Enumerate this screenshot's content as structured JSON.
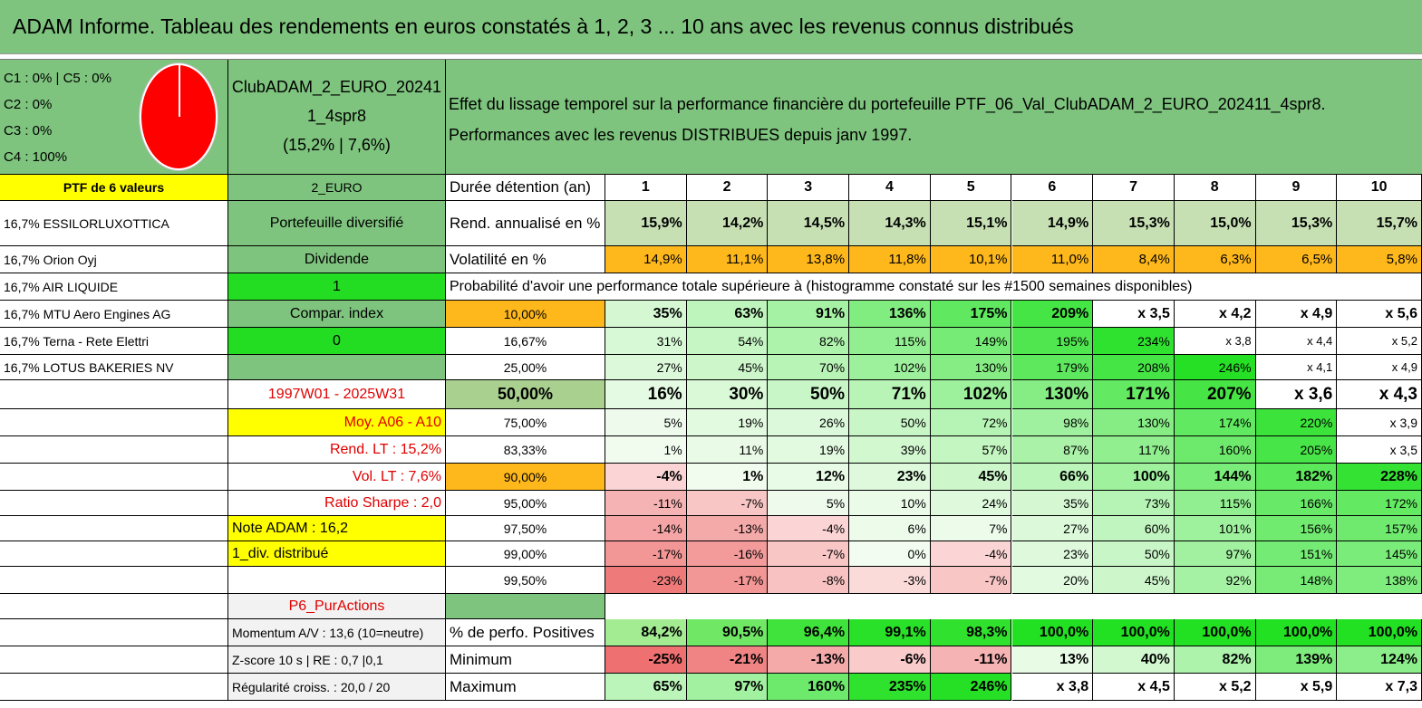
{
  "header": {
    "title": "ADAM Informe. Tableau des rendements en euros constatés à 1, 2, 3 ... 10 ans avec les revenus connus distribués"
  },
  "allocation": [
    "C1 : 0% | C5 : 0%",
    "C2 : 0%",
    "C3 : 0%",
    "C4 : 100%"
  ],
  "portfolio": [
    "ClubADAM_2_EURO_20241",
    "1_4spr8",
    "(15,2% | 7,6%)"
  ],
  "description": [
    "Effet du lissage temporel sur la performance financière du portefeuille PTF_06_Val_ClubADAM_2_EURO_202411_4spr8.",
    "Performances avec les revenus DISTRIBUES depuis janv 1997."
  ],
  "table": {
    "rows": [
      [
        "PTF de 6 valeurs",
        "2_EURO",
        "Durée détention (an)",
        "1",
        "2",
        "3",
        "4",
        "5",
        "6",
        "7",
        "8",
        "9",
        "10"
      ],
      [
        "16,7% ESSILORLUXOTTICA",
        "Portefeuille diversifié",
        "Rend. annualisé en %",
        "15,9%",
        "14,2%",
        "14,5%",
        "14,3%",
        "15,1%",
        "14,9%",
        "15,3%",
        "15,0%",
        "15,3%",
        "15,7%"
      ],
      [
        "16,7% Orion Oyj",
        "Dividende",
        "Volatilité en %",
        "14,9%",
        "11,1%",
        "13,8%",
        "11,8%",
        "10,1%",
        "11,0%",
        "8,4%",
        "6,3%",
        "6,5%",
        "5,8%"
      ],
      [
        "16,7% AIR LIQUIDE",
        "1",
        "Probabilité d'avoir une performance totale supérieure à (histogramme constaté sur les #1500 semaines disponibles)"
      ],
      [
        "16,7% MTU Aero Engines AG",
        "Compar. index",
        "10,00%",
        "35%",
        "63%",
        "91%",
        "136%",
        "175%",
        "209%",
        "x 3,5",
        "x 4,2",
        "x 4,9",
        "x 5,6"
      ],
      [
        "16,7% Terna - Rete Elettri",
        "0",
        "16,67%",
        "31%",
        "54%",
        "82%",
        "115%",
        "149%",
        "195%",
        "234%",
        "x 3,8",
        "x 4,4",
        "x 5,2"
      ],
      [
        "16,7% LOTUS BAKERIES NV",
        null,
        "25,00%",
        "27%",
        "45%",
        "70%",
        "102%",
        "130%",
        "179%",
        "208%",
        "246%",
        "x 4,1",
        "x 4,9"
      ],
      [
        null,
        "1997W01 - 2025W31",
        "50,00%",
        "16%",
        "30%",
        "50%",
        "71%",
        "102%",
        "130%",
        "171%",
        "207%",
        "x 3,6",
        "x 4,3"
      ],
      [
        null,
        "Moy. A06 - A10",
        "75,00%",
        "5%",
        "19%",
        "26%",
        "50%",
        "72%",
        "98%",
        "130%",
        "174%",
        "220%",
        "x 3,9"
      ],
      [
        null,
        "Rend. LT : 15,2%",
        "83,33%",
        "1%",
        "11%",
        "19%",
        "39%",
        "57%",
        "87%",
        "117%",
        "160%",
        "205%",
        "x 3,5"
      ],
      [
        null,
        "Vol. LT : 7,6%",
        "90,00%",
        "-4%",
        "1%",
        "12%",
        "23%",
        "45%",
        "66%",
        "100%",
        "144%",
        "182%",
        "228%"
      ],
      [
        null,
        "Ratio Sharpe : 2,0",
        "95,00%",
        "-11%",
        "-7%",
        "5%",
        "10%",
        "24%",
        "35%",
        "73%",
        "115%",
        "166%",
        "172%"
      ],
      [
        null,
        "Note ADAM : 16,2",
        "97,50%",
        "-14%",
        "-13%",
        "-4%",
        "6%",
        "7%",
        "27%",
        "60%",
        "101%",
        "156%",
        "157%"
      ],
      [
        null,
        "1_div. distribué",
        "99,00%",
        "-17%",
        "-16%",
        "-7%",
        "0%",
        "-4%",
        "23%",
        "50%",
        "97%",
        "151%",
        "145%"
      ],
      [
        null,
        null,
        "99,50%",
        "-23%",
        "-17%",
        "-8%",
        "-3%",
        "-7%",
        "20%",
        "45%",
        "92%",
        "148%",
        "138%"
      ],
      [
        null,
        "P6_PurActions",
        null
      ],
      [
        null,
        "Momentum A/V : 13,6 (10=neutre)",
        "% de perfo. Positives",
        "84,2%",
        "90,5%",
        "96,4%",
        "99,1%",
        "98,3%",
        "100,0%",
        "100,0%",
        "100,0%",
        "100,0%",
        "100,0%"
      ],
      [
        null,
        "Z-score 10 s | RE : 0,7 |0,1",
        "Minimum",
        "-25%",
        "-21%",
        "-13%",
        "-6%",
        "-11%",
        "13%",
        "40%",
        "82%",
        "139%",
        "124%"
      ],
      [
        null,
        "Régularité croiss. : 20,0 / 20",
        "Maximum",
        "65%",
        "97%",
        "160%",
        "235%",
        "246%",
        "x 3,8",
        "x 4,5",
        "x 5,2",
        "x 5,9",
        "x 7,3"
      ]
    ]
  }
}
